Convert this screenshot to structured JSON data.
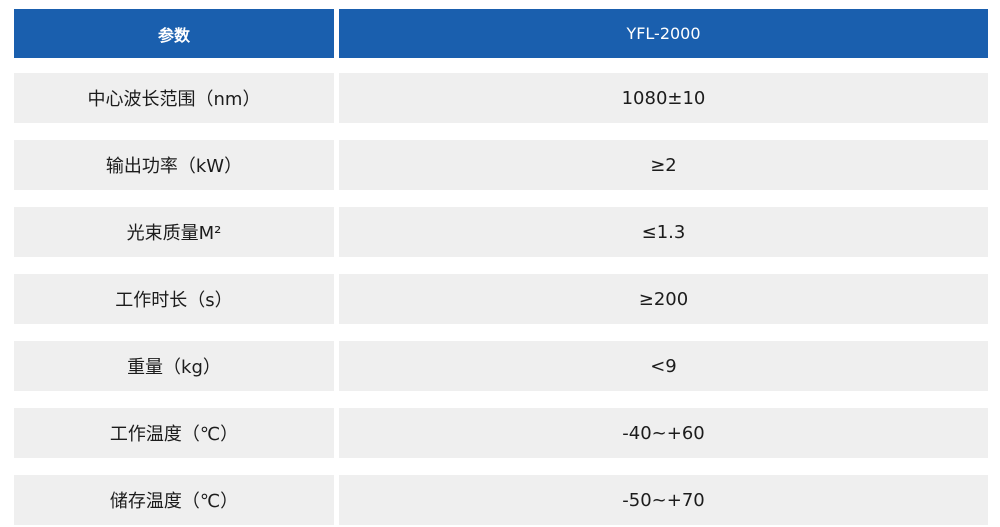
{
  "header": {
    "param_label": "参数",
    "model_label": "YFL-2000"
  },
  "rows": [
    {
      "param": "中心波长范围（nm）",
      "value": "1080±10"
    },
    {
      "param": "输出功率（kW）",
      "value": "≥2"
    },
    {
      "param": "光束质量M²",
      "value": "≤1.3"
    },
    {
      "param": "工作时长（s）",
      "value": "≥200"
    },
    {
      "param": "重量（kg）",
      "value": "<9"
    },
    {
      "param": "工作温度（℃）",
      "value": "-40~+60"
    },
    {
      "param": "储存温度（℃）",
      "value": "-50~+70"
    }
  ],
  "colors": {
    "header_bg": "#1a5fae",
    "row_bg": "#efefef"
  }
}
